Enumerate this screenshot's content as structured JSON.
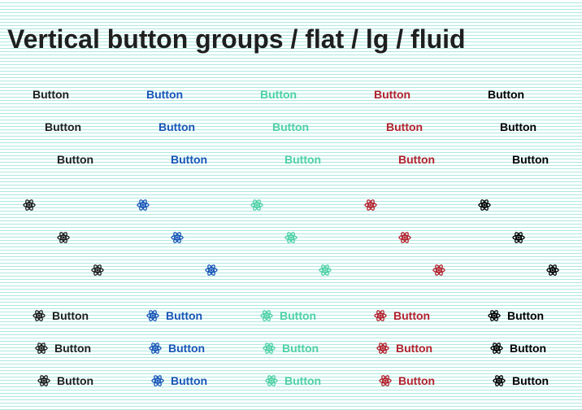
{
  "title": "Vertical button groups / flat / lg / fluid",
  "button_label": "Button",
  "icon": "atom-icon",
  "variants": [
    {
      "name": "default",
      "color": "#1f1f1f"
    },
    {
      "name": "primary",
      "color": "#1a56b8"
    },
    {
      "name": "success",
      "color": "#4fd1a5"
    },
    {
      "name": "danger",
      "color": "#b3222e"
    },
    {
      "name": "dark",
      "color": "#000000"
    }
  ],
  "groups": [
    {
      "type": "text",
      "buttons": [
        "Button",
        "Button",
        "Button"
      ]
    },
    {
      "type": "icon",
      "buttons": [
        "",
        "",
        ""
      ]
    },
    {
      "type": "icon-text",
      "buttons": [
        "Button",
        "Button",
        "Button"
      ]
    }
  ]
}
